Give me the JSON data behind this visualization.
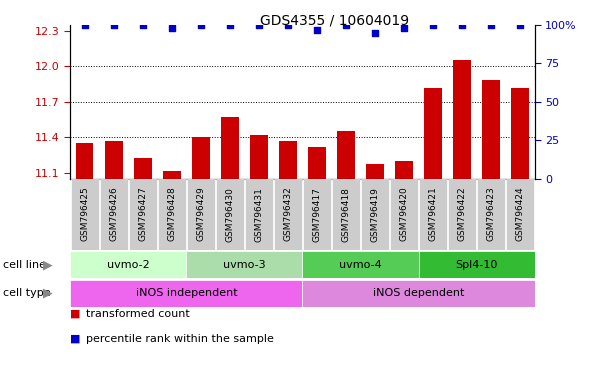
{
  "title": "GDS4355 / 10604019",
  "samples": [
    "GSM796425",
    "GSM796426",
    "GSM796427",
    "GSM796428",
    "GSM796429",
    "GSM796430",
    "GSM796431",
    "GSM796432",
    "GSM796417",
    "GSM796418",
    "GSM796419",
    "GSM796420",
    "GSM796421",
    "GSM796422",
    "GSM796423",
    "GSM796424"
  ],
  "transformed_counts": [
    11.35,
    11.37,
    11.22,
    11.11,
    11.4,
    11.57,
    11.42,
    11.37,
    11.32,
    11.45,
    11.17,
    11.2,
    11.82,
    12.05,
    11.88,
    11.82
  ],
  "percentile_ranks": [
    100,
    100,
    100,
    98,
    100,
    100,
    100,
    100,
    97,
    100,
    95,
    98,
    100,
    100,
    100,
    100
  ],
  "ylim_left": [
    11.05,
    12.35
  ],
  "ylim_right": [
    0,
    100
  ],
  "yticks_left": [
    11.1,
    11.4,
    11.7,
    12.0,
    12.3
  ],
  "yticks_right": [
    0,
    25,
    50,
    75,
    100
  ],
  "bar_color": "#cc0000",
  "dot_color": "#0000cc",
  "cell_line_colors": [
    "#ccffcc",
    "#99ee99",
    "#55cc55",
    "#33cc33"
  ],
  "cell_line_groups": [
    {
      "label": "uvmo-2",
      "start": 0,
      "end": 3,
      "color": "#ccffcc"
    },
    {
      "label": "uvmo-3",
      "start": 4,
      "end": 7,
      "color": "#aaddaa"
    },
    {
      "label": "uvmo-4",
      "start": 8,
      "end": 11,
      "color": "#55cc55"
    },
    {
      "label": "Spl4-10",
      "start": 12,
      "end": 15,
      "color": "#33bb33"
    }
  ],
  "cell_type_groups": [
    {
      "label": "iNOS independent",
      "start": 0,
      "end": 7,
      "color": "#ee66ee"
    },
    {
      "label": "iNOS dependent",
      "start": 8,
      "end": 15,
      "color": "#dd88dd"
    }
  ],
  "legend_items": [
    {
      "label": "transformed count",
      "color": "#cc0000"
    },
    {
      "label": "percentile rank within the sample",
      "color": "#0000cc"
    }
  ],
  "grid_lines": [
    11.4,
    11.7,
    12.0
  ],
  "sample_box_color": "#cccccc",
  "left_label_color": "#888888",
  "xlabel_fontsize": 6.5,
  "title_fontsize": 10
}
